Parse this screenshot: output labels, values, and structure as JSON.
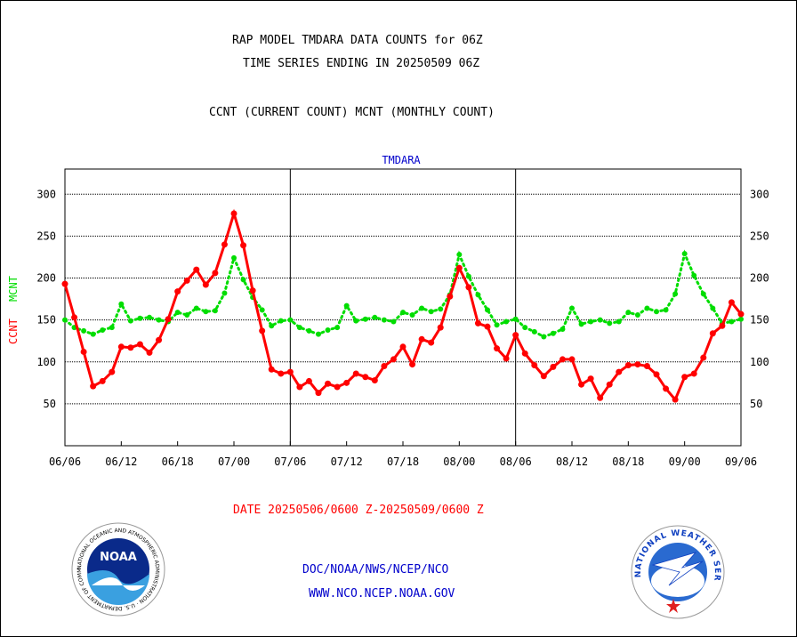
{
  "header": {
    "title_line1": "RAP MODEL TMDARA DATA COUNTS for 06Z",
    "title_line2": "TIME SERIES ENDING IN 20250509 06Z",
    "subtitle": "CCNT (CURRENT COUNT) MCNT (MONTHLY COUNT)"
  },
  "footer": {
    "date_range": "DATE 20250506/0600 Z-20250509/0600 Z",
    "org": "DOC/NOAA/NWS/NCEP/NCO",
    "url": "WWW.NCO.NCEP.NOAA.GOV"
  },
  "logos": {
    "noaa": {
      "text": "NOAA",
      "ring": "NATIONAL OCEANIC AND ATMOSPHERIC ADMINISTRATION · U.S. DEPARTMENT OF COMMERCE ·"
    },
    "nws": {
      "ring": "NATIONAL WEATHER SERVICE"
    }
  },
  "colors": {
    "ccnt": "#ff0000",
    "mcnt": "#00dd00",
    "title_blue": "#0000cc",
    "date_red": "#ff0000"
  },
  "chart_data": {
    "type": "line",
    "title": "TMDARA",
    "ylabel_left": [
      "CCNT",
      "MCNT"
    ],
    "ylim": [
      0,
      330
    ],
    "yticks": [
      50,
      100,
      150,
      200,
      250,
      300
    ],
    "xticks": [
      "06/06",
      "06/12",
      "06/18",
      "07/00",
      "07/06",
      "07/12",
      "07/18",
      "08/00",
      "08/06",
      "08/12",
      "08/18",
      "09/00",
      "09/06"
    ],
    "day_dividers": [
      "07/06",
      "08/06"
    ],
    "grid": true,
    "x_step_hours": 1,
    "series": [
      {
        "name": "CCNT",
        "color": "#ff0000",
        "values": [
          193,
          153,
          112,
          71,
          77,
          88,
          118,
          117,
          121,
          111,
          126,
          151,
          184,
          197,
          210,
          192,
          206,
          240,
          277,
          239,
          185,
          137,
          91,
          86,
          88,
          70,
          77,
          63,
          74,
          70,
          75,
          86,
          82,
          78,
          95,
          103,
          118,
          97,
          127,
          123,
          141,
          178,
          212,
          189,
          146,
          142,
          116,
          104,
          132,
          110,
          96,
          83,
          94,
          103,
          103,
          73,
          80,
          57,
          73,
          88,
          96,
          97,
          95,
          85,
          68,
          55,
          82,
          86,
          105,
          134,
          143,
          171,
          157
        ],
        "mcnt": [
          150,
          141,
          137,
          133,
          138,
          141,
          169,
          149,
          152,
          153,
          150,
          148,
          159,
          156,
          164,
          160,
          161,
          182,
          224,
          198,
          177,
          162,
          143,
          149,
          150,
          141,
          137,
          133,
          138,
          141,
          167,
          149,
          151,
          153,
          150,
          148,
          159,
          156,
          164,
          160,
          163,
          180,
          228,
          202,
          180,
          162,
          144,
          148,
          151,
          141,
          136,
          130,
          134,
          139,
          164,
          145,
          148,
          150,
          146,
          148,
          159,
          156,
          164,
          160,
          162,
          181,
          229,
          203,
          181,
          164,
          146,
          148,
          151
        ]
      }
    ]
  }
}
